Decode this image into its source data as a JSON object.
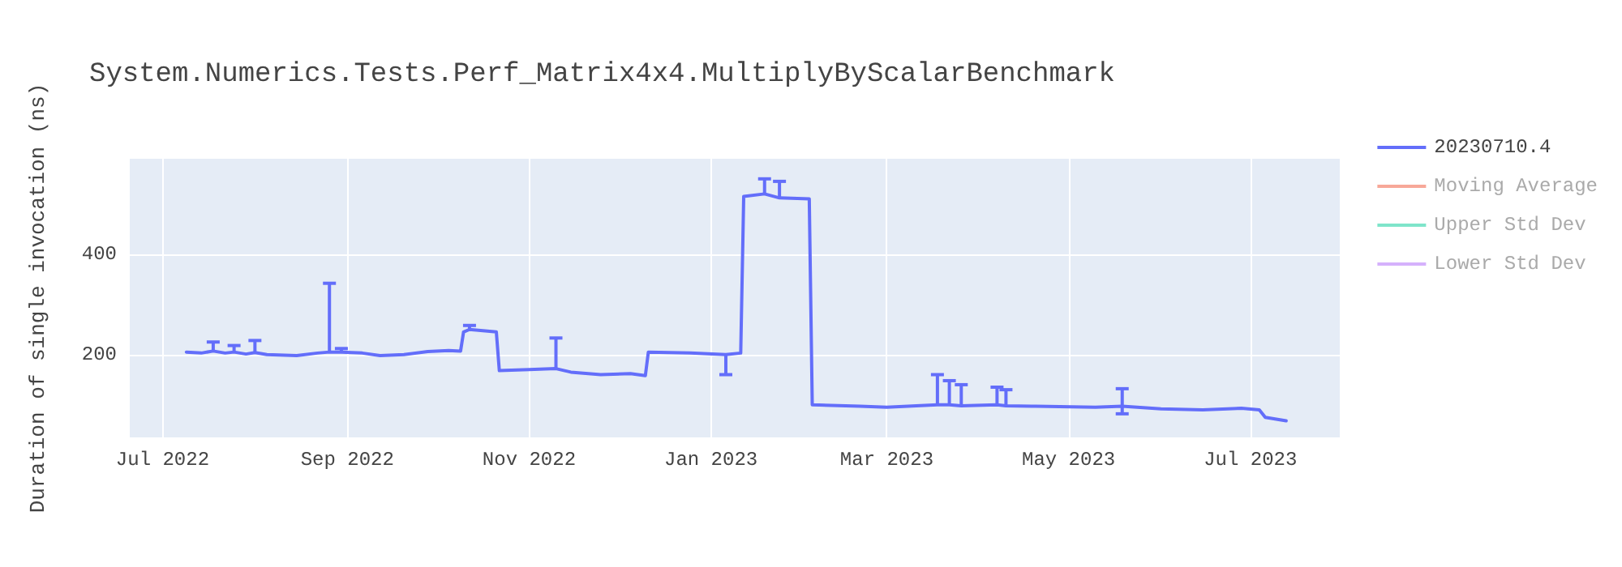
{
  "chart_data": {
    "type": "line",
    "title": "System.Numerics.Tests.Perf_Matrix4x4.MultiplyByScalarBenchmark",
    "ylabel": "Duration of single invocation (ns)",
    "x": [
      "2022-07-09",
      "2022-07-14",
      "2022-07-18",
      "2022-07-22",
      "2022-07-25",
      "2022-07-29",
      "2022-08-01",
      "2022-08-05",
      "2022-08-15",
      "2022-08-22",
      "2022-08-26",
      "2022-08-30",
      "2022-09-06",
      "2022-09-12",
      "2022-09-20",
      "2022-09-28",
      "2022-10-05",
      "2022-10-09",
      "2022-10-10",
      "2022-10-12",
      "2022-10-21",
      "2022-10-22",
      "2022-11-01",
      "2022-11-10",
      "2022-11-15",
      "2022-11-25",
      "2022-12-05",
      "2022-12-10",
      "2022-12-11",
      "2022-12-25",
      "2023-01-06",
      "2023-01-11",
      "2023-01-12",
      "2023-01-19",
      "2023-01-24",
      "2023-02-03",
      "2023-02-04",
      "2023-02-20",
      "2023-03-01",
      "2023-03-18",
      "2023-03-22",
      "2023-03-26",
      "2023-04-07",
      "2023-04-10",
      "2023-04-20",
      "2023-05-10",
      "2023-05-19",
      "2023-06-01",
      "2023-06-15",
      "2023-06-28",
      "2023-07-04",
      "2023-07-06",
      "2023-07-13"
    ],
    "series": [
      {
        "name": "20230710.4",
        "color": "#636efa",
        "values": [
          205,
          203,
          207,
          203,
          205,
          201,
          204,
          200,
          198,
          203,
          205,
          205,
          203,
          198,
          200,
          206,
          208,
          207,
          245,
          250,
          245,
          168,
          170,
          172,
          165,
          160,
          162,
          158,
          205,
          203,
          200,
          203,
          515,
          520,
          512,
          510,
          100,
          97,
          95,
          100,
          100,
          98,
          100,
          98,
          97,
          95,
          97,
          92,
          90,
          93,
          90,
          75,
          68
        ],
        "errors": [
          null,
          null,
          [
            207,
            225
          ],
          null,
          [
            205,
            218
          ],
          null,
          [
            204,
            228
          ],
          null,
          null,
          null,
          [
            205,
            342
          ],
          [
            205,
            212
          ],
          null,
          null,
          null,
          null,
          null,
          null,
          null,
          [
            250,
            258
          ],
          null,
          null,
          null,
          [
            172,
            233
          ],
          null,
          null,
          null,
          null,
          null,
          null,
          [
            160,
            200
          ],
          null,
          null,
          [
            520,
            550
          ],
          [
            512,
            545
          ],
          null,
          null,
          null,
          null,
          [
            100,
            160
          ],
          [
            100,
            148
          ],
          [
            98,
            140
          ],
          [
            100,
            135
          ],
          [
            98,
            130
          ],
          null,
          null,
          [
            82,
            132
          ],
          null,
          null,
          null,
          null,
          null,
          null
        ]
      },
      {
        "name": "Moving Average",
        "color": "#f7a899",
        "values": [
          null,
          null,
          null,
          null,
          null,
          null,
          null,
          null,
          null,
          null,
          null,
          null,
          null,
          null,
          null,
          null,
          null,
          null,
          null,
          null,
          null,
          null,
          null,
          null,
          null,
          null,
          null,
          null,
          null,
          null,
          null,
          null,
          null,
          null,
          null,
          null,
          null,
          null,
          null,
          null,
          null,
          null,
          null,
          null,
          null,
          null,
          null,
          null,
          null,
          null,
          null,
          null,
          null
        ]
      },
      {
        "name": "Upper Std Dev",
        "color": "#7fe5ca",
        "values": [
          null,
          null,
          null,
          null,
          null,
          null,
          null,
          null,
          null,
          null,
          null,
          null,
          null,
          null,
          null,
          null,
          null,
          null,
          null,
          null,
          null,
          null,
          null,
          null,
          null,
          null,
          null,
          null,
          null,
          null,
          null,
          null,
          null,
          null,
          null,
          null,
          null,
          null,
          null,
          null,
          null,
          null,
          null,
          null,
          null,
          null,
          null,
          null,
          null,
          null,
          null,
          null,
          null
        ]
      },
      {
        "name": "Lower Std Dev",
        "color": "#d5b1fc",
        "values": [
          null,
          null,
          null,
          null,
          null,
          null,
          null,
          null,
          null,
          null,
          null,
          null,
          null,
          null,
          null,
          null,
          null,
          null,
          null,
          null,
          null,
          null,
          null,
          null,
          null,
          null,
          null,
          null,
          null,
          null,
          null,
          null,
          null,
          null,
          null,
          null,
          null,
          null,
          null,
          null,
          null,
          null,
          null,
          null,
          null,
          null,
          null,
          null,
          null,
          null,
          null,
          null,
          null
        ]
      }
    ],
    "xlim": [
      "2022-06-20",
      "2023-07-31"
    ],
    "xticks": [
      {
        "value": "2022-07-01",
        "label": "Jul 2022"
      },
      {
        "value": "2022-09-01",
        "label": "Sep 2022"
      },
      {
        "value": "2022-11-01",
        "label": "Nov 2022"
      },
      {
        "value": "2023-01-01",
        "label": "Jan 2023"
      },
      {
        "value": "2023-03-01",
        "label": "Mar 2023"
      },
      {
        "value": "2023-05-01",
        "label": "May 2023"
      },
      {
        "value": "2023-07-01",
        "label": "Jul 2023"
      }
    ],
    "ylim": [
      35,
      590
    ],
    "yticks": [
      200,
      400
    ],
    "grid": true,
    "legend": "top right",
    "marker": "none",
    "line_style": "solid"
  }
}
